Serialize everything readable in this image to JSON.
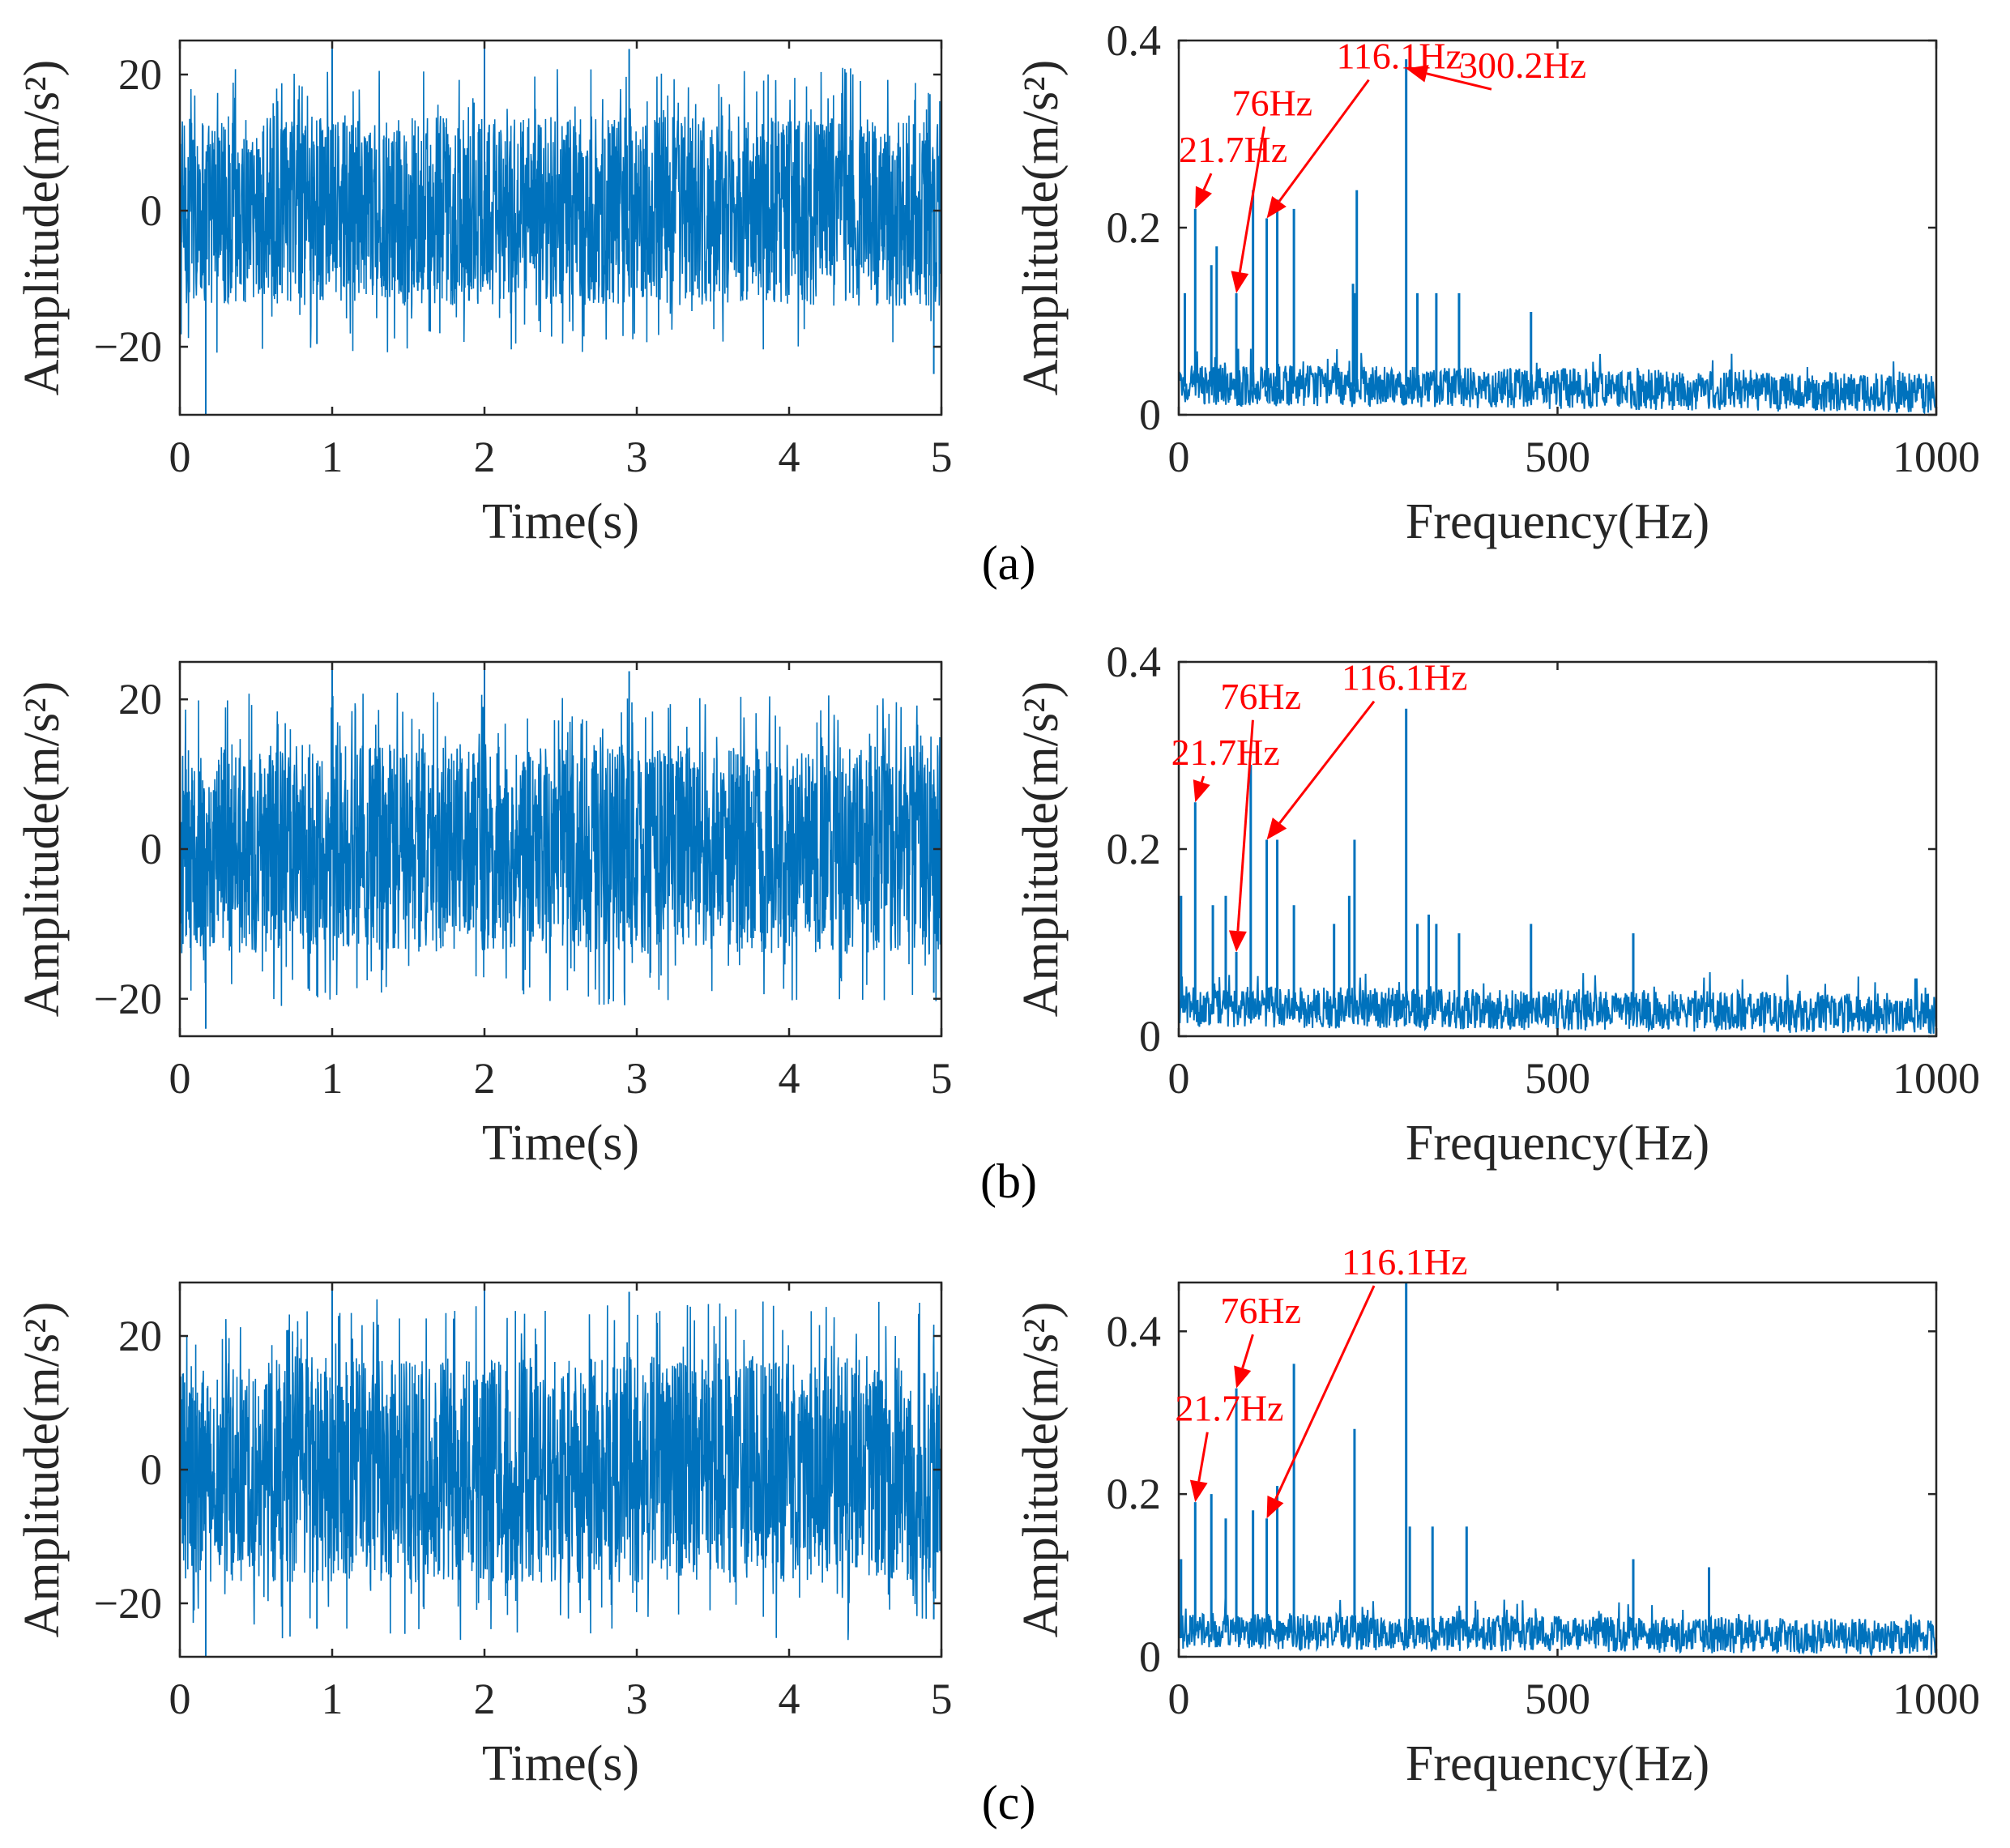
{
  "figure": {
    "panel_labels": [
      "(a)",
      "(b)",
      "(c)"
    ],
    "colors": {
      "signal": "#0072BD",
      "annotation": "#FF0000",
      "axis": "#262626"
    }
  },
  "chart_data": [
    {
      "id": "a-time",
      "type": "line",
      "xlabel": "Time(s)",
      "ylabel": "Amplitude(m/s²)",
      "xlim": [
        0,
        5
      ],
      "ylim": [
        -30,
        25
      ],
      "xticks": [
        0,
        1,
        2,
        3,
        4,
        5
      ],
      "yticks": [
        -20,
        0,
        20
      ],
      "signal": {
        "kind": "noise",
        "duration_s": 5,
        "band": 14,
        "peak": 25,
        "min": -30
      },
      "annotations": []
    },
    {
      "id": "a-freq",
      "type": "line",
      "xlabel": "Frequency(Hz)",
      "ylabel": "Amplitude(m/s²)",
      "xlim": [
        0,
        1000
      ],
      "ylim": [
        0,
        0.4
      ],
      "xticks": [
        0,
        500,
        1000
      ],
      "yticks": [
        0,
        0.2,
        0.4
      ],
      "spectrum": {
        "x": [
          8,
          21.7,
          43,
          50,
          76,
          98,
          116.1,
          130,
          152,
          230,
          232,
          235,
          300.2,
          315,
          340,
          370,
          465
        ],
        "y": [
          0.13,
          0.22,
          0.16,
          0.18,
          0.13,
          0.24,
          0.21,
          0.23,
          0.22,
          0.14,
          0.13,
          0.24,
          0.38,
          0.13,
          0.13,
          0.13,
          0.11
        ]
      },
      "annotations": [
        {
          "label": "21.7Hz",
          "x": 21.7,
          "y": 0.22,
          "text_x": 0,
          "text_y": 0.27
        },
        {
          "label": "76Hz",
          "x": 76,
          "y": 0.13,
          "text_x": 70,
          "text_y": 0.32
        },
        {
          "label": "116.1Hz",
          "x": 116.1,
          "y": 0.21,
          "text_x": 208,
          "text_y": 0.37
        },
        {
          "label": "300.2Hz",
          "x": 300.2,
          "y": 0.37,
          "text_x": 370,
          "text_y": 0.36
        }
      ]
    },
    {
      "id": "b-time",
      "type": "line",
      "xlabel": "Time(s)",
      "ylabel": "Amplitude(m/s²)",
      "xlim": [
        0,
        5
      ],
      "ylim": [
        -25,
        25
      ],
      "xticks": [
        0,
        1,
        2,
        3,
        4,
        5
      ],
      "yticks": [
        -20,
        0,
        20
      ],
      "signal": {
        "kind": "noise",
        "duration_s": 5,
        "band": 14,
        "peak": 25,
        "min": -24
      },
      "annotations": []
    },
    {
      "id": "b-freq",
      "type": "line",
      "xlabel": "Frequency(Hz)",
      "ylabel": "Amplitude(m/s²)",
      "xlim": [
        0,
        1000
      ],
      "ylim": [
        0,
        0.4
      ],
      "xticks": [
        0,
        500,
        1000
      ],
      "yticks": [
        0,
        0.2,
        0.4
      ],
      "spectrum": {
        "x": [
          3,
          21.7,
          45,
          62,
          76,
          95,
          116.1,
          130,
          152,
          205,
          225,
          232,
          300.2,
          315,
          330,
          340,
          370,
          465,
          600
        ],
        "y": [
          0.15,
          0.25,
          0.14,
          0.15,
          0.09,
          0.29,
          0.21,
          0.21,
          0.14,
          0.12,
          0.15,
          0.21,
          0.35,
          0.12,
          0.13,
          0.12,
          0.11,
          0.12,
          0.11
        ]
      },
      "annotations": [
        {
          "label": "21.7Hz",
          "x": 21.7,
          "y": 0.25,
          "text_x": -10,
          "text_y": 0.29
        },
        {
          "label": "76Hz",
          "x": 76,
          "y": 0.09,
          "text_x": 55,
          "text_y": 0.35
        },
        {
          "label": "116.1Hz",
          "x": 116.1,
          "y": 0.21,
          "text_x": 215,
          "text_y": 0.37
        }
      ]
    },
    {
      "id": "c-time",
      "type": "line",
      "xlabel": "Time(s)",
      "ylabel": "Amplitude(m/s²)",
      "xlim": [
        0,
        5
      ],
      "ylim": [
        -28,
        28
      ],
      "xticks": [
        0,
        1,
        2,
        3,
        4,
        5
      ],
      "yticks": [
        -20,
        0,
        20
      ],
      "signal": {
        "kind": "noise",
        "duration_s": 5,
        "band": 17,
        "peak": 28,
        "min": -28
      },
      "annotations": []
    },
    {
      "id": "c-freq",
      "type": "line",
      "xlabel": "Frequency(Hz)",
      "ylabel": "Amplitude(m/s²)",
      "xlim": [
        0,
        1000
      ],
      "ylim": [
        0,
        0.46
      ],
      "xticks": [
        0,
        500,
        1000
      ],
      "yticks": [
        0,
        0.2,
        0.4
      ],
      "spectrum": {
        "x": [
          3,
          21.7,
          43,
          62,
          76,
          98,
          116.1,
          130,
          152,
          232,
          300.2,
          305,
          335,
          380,
          600,
          700
        ],
        "y": [
          0.12,
          0.19,
          0.2,
          0.17,
          0.33,
          0.18,
          0.17,
          0.21,
          0.36,
          0.28,
          0.46,
          0.16,
          0.16,
          0.16,
          0.12,
          0.11
        ]
      },
      "annotations": [
        {
          "label": "21.7Hz",
          "x": 21.7,
          "y": 0.19,
          "text_x": -5,
          "text_y": 0.29
        },
        {
          "label": "76Hz",
          "x": 76,
          "y": 0.33,
          "text_x": 55,
          "text_y": 0.41
        },
        {
          "label": "116.1Hz",
          "x": 116.1,
          "y": 0.17,
          "text_x": 215,
          "text_y": 0.47
        }
      ]
    }
  ]
}
